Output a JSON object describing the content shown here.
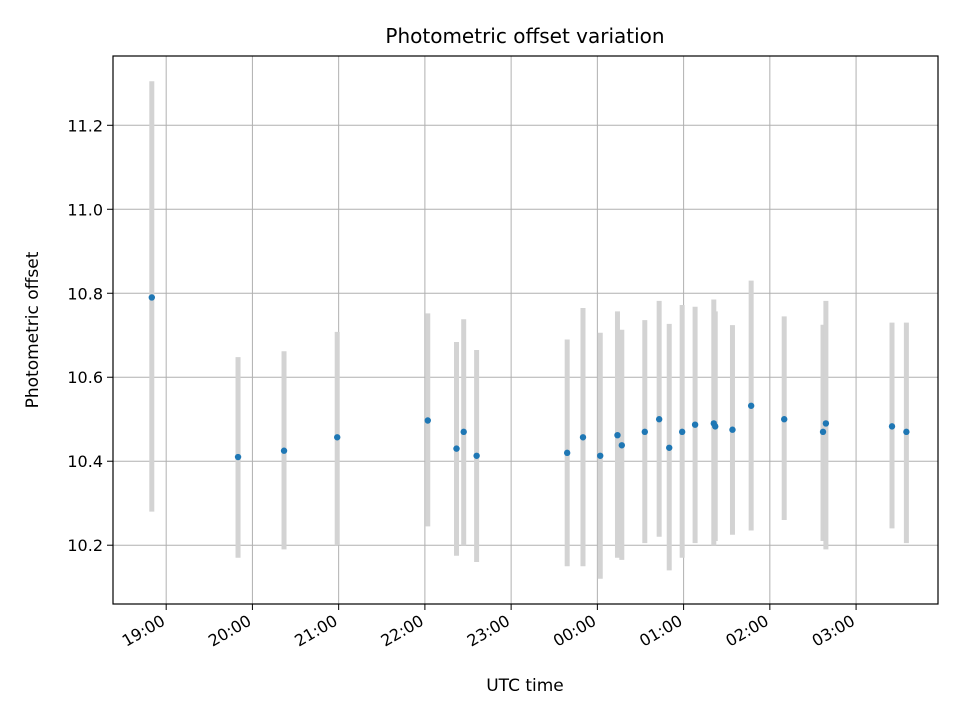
{
  "chart_data": {
    "type": "scatter",
    "title": "Photometric offset variation",
    "xlabel": "UTC time",
    "ylabel": "Photometric offset",
    "grid": true,
    "xlim": [
      "18:23",
      "03:57"
    ],
    "ylim": [
      10.06,
      11.365
    ],
    "x_ticks": [
      "19:00",
      "20:00",
      "21:00",
      "22:00",
      "23:00",
      "00:00",
      "01:00",
      "02:00",
      "03:00"
    ],
    "y_ticks": [
      "10.2",
      "10.4",
      "10.6",
      "10.8",
      "11.0",
      "11.2"
    ],
    "point_color": "#1f77b4",
    "errorbar_color": "#d3d3d3",
    "series": [
      {
        "x": [
          "18:50",
          "19:50",
          "20:22",
          "20:59",
          "22:02",
          "22:22",
          "22:27",
          "22:36",
          "23:39",
          "23:50",
          "00:02",
          "00:14",
          "00:17",
          "00:33",
          "00:43",
          "00:50",
          "00:59",
          "01:08",
          "01:21",
          "01:22",
          "01:34",
          "01:47",
          "02:10",
          "02:37",
          "02:39",
          "03:25",
          "03:35"
        ],
        "y": [
          10.79,
          10.41,
          10.425,
          10.457,
          10.497,
          10.43,
          10.47,
          10.413,
          10.42,
          10.457,
          10.413,
          10.462,
          10.438,
          10.47,
          10.5,
          10.432,
          10.47,
          10.487,
          10.49,
          10.483,
          10.475,
          10.532,
          10.5,
          10.47,
          10.49,
          10.483,
          10.47
        ],
        "yerr_low": [
          10.28,
          10.17,
          10.19,
          10.2,
          10.245,
          10.175,
          10.2,
          10.16,
          10.15,
          10.15,
          10.12,
          10.17,
          10.165,
          10.205,
          10.22,
          10.14,
          10.17,
          10.205,
          10.2,
          10.21,
          10.225,
          10.235,
          10.26,
          10.21,
          10.19,
          10.24,
          10.205
        ],
        "yerr_high": [
          11.305,
          10.648,
          10.662,
          10.708,
          10.752,
          10.684,
          10.738,
          10.665,
          10.69,
          10.765,
          10.706,
          10.757,
          10.713,
          10.736,
          10.782,
          10.727,
          10.772,
          10.768,
          10.785,
          10.757,
          10.724,
          10.83,
          10.745,
          10.725,
          10.782,
          10.73,
          10.73
        ]
      }
    ]
  }
}
